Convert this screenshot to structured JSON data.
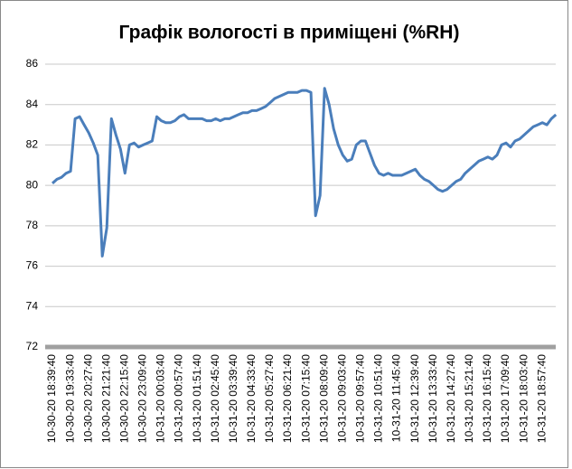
{
  "chart_data": {
    "type": "line",
    "title": "Графік вологості в приміщені (%RH)",
    "categories": [
      "10-30-20 18:39:40",
      null,
      null,
      null,
      "10-30-20 19:33:40",
      null,
      null,
      null,
      "10-30-20 20:27:40",
      null,
      null,
      null,
      "10-30-20 21:21:40",
      null,
      null,
      null,
      "10-30-20 22:15:40",
      null,
      null,
      null,
      "10-30-20 23:09:40",
      null,
      null,
      null,
      "10-31-20 00:03:40",
      null,
      null,
      null,
      "10-31-20 00:57:40",
      null,
      null,
      null,
      "10-31-20 01:51:40",
      null,
      null,
      null,
      "10-31-20 02:45:40",
      null,
      null,
      null,
      "10-31-20 03:39:40",
      null,
      null,
      null,
      "10-31-20 04:33:40",
      null,
      null,
      null,
      "10-31-20 05:27:40",
      null,
      null,
      null,
      "10-31-20 06:21:40",
      null,
      null,
      null,
      "10-31-20 07:15:40",
      null,
      null,
      null,
      "10-31-20 08:09:40",
      null,
      null,
      null,
      "10-31-20 09:03:40",
      null,
      null,
      null,
      "10-31-20 09:57:40",
      null,
      null,
      null,
      "10-31-20 10:51:40",
      null,
      null,
      null,
      "10-31-20 11:45:40",
      null,
      null,
      null,
      "10-31-20 12:39:40",
      null,
      null,
      null,
      "10-31-20 13:33:40",
      null,
      null,
      null,
      "10-31-20 14:27:40",
      null,
      null,
      null,
      "10-31-20 15:21:40",
      null,
      null,
      null,
      "10-31-20 16:15:40",
      null,
      null,
      null,
      "10-31-20 17:09:40",
      null,
      null,
      null,
      "10-31-20 18:03:40",
      null,
      null,
      null,
      "10-31-20 18:57:40",
      null,
      null,
      null
    ],
    "series": [
      {
        "name": "%RH",
        "color": "#4a7ebb",
        "values": [
          80.1,
          80.3,
          80.4,
          80.6,
          80.7,
          83.3,
          83.4,
          83.0,
          82.6,
          82.1,
          81.5,
          76.5,
          77.9,
          83.3,
          82.5,
          81.8,
          80.6,
          82.0,
          82.1,
          81.9,
          82.0,
          82.1,
          82.2,
          83.4,
          83.2,
          83.1,
          83.1,
          83.2,
          83.4,
          83.5,
          83.3,
          83.3,
          83.3,
          83.3,
          83.2,
          83.2,
          83.3,
          83.2,
          83.3,
          83.3,
          83.4,
          83.5,
          83.6,
          83.6,
          83.7,
          83.7,
          83.8,
          83.9,
          84.1,
          84.3,
          84.4,
          84.5,
          84.6,
          84.6,
          84.6,
          84.7,
          84.7,
          84.6,
          78.5,
          79.5,
          84.8,
          84.0,
          82.8,
          82.0,
          81.5,
          81.2,
          81.3,
          82.0,
          82.2,
          82.2,
          81.6,
          81.0,
          80.6,
          80.5,
          80.6,
          80.5,
          80.5,
          80.5,
          80.6,
          80.7,
          80.8,
          80.5,
          80.3,
          80.2,
          80.0,
          79.8,
          79.7,
          79.8,
          80.0,
          80.2,
          80.3,
          80.6,
          80.8,
          81.0,
          81.2,
          81.3,
          81.4,
          81.3,
          81.5,
          82.0,
          82.1,
          81.9,
          82.2,
          82.3,
          82.5,
          82.7,
          82.9,
          83.0,
          83.1,
          83.0,
          83.3,
          83.5
        ]
      }
    ],
    "ylim": [
      72,
      86
    ],
    "yticks": [
      72,
      74,
      76,
      78,
      80,
      82,
      84,
      86
    ],
    "grid": true
  }
}
